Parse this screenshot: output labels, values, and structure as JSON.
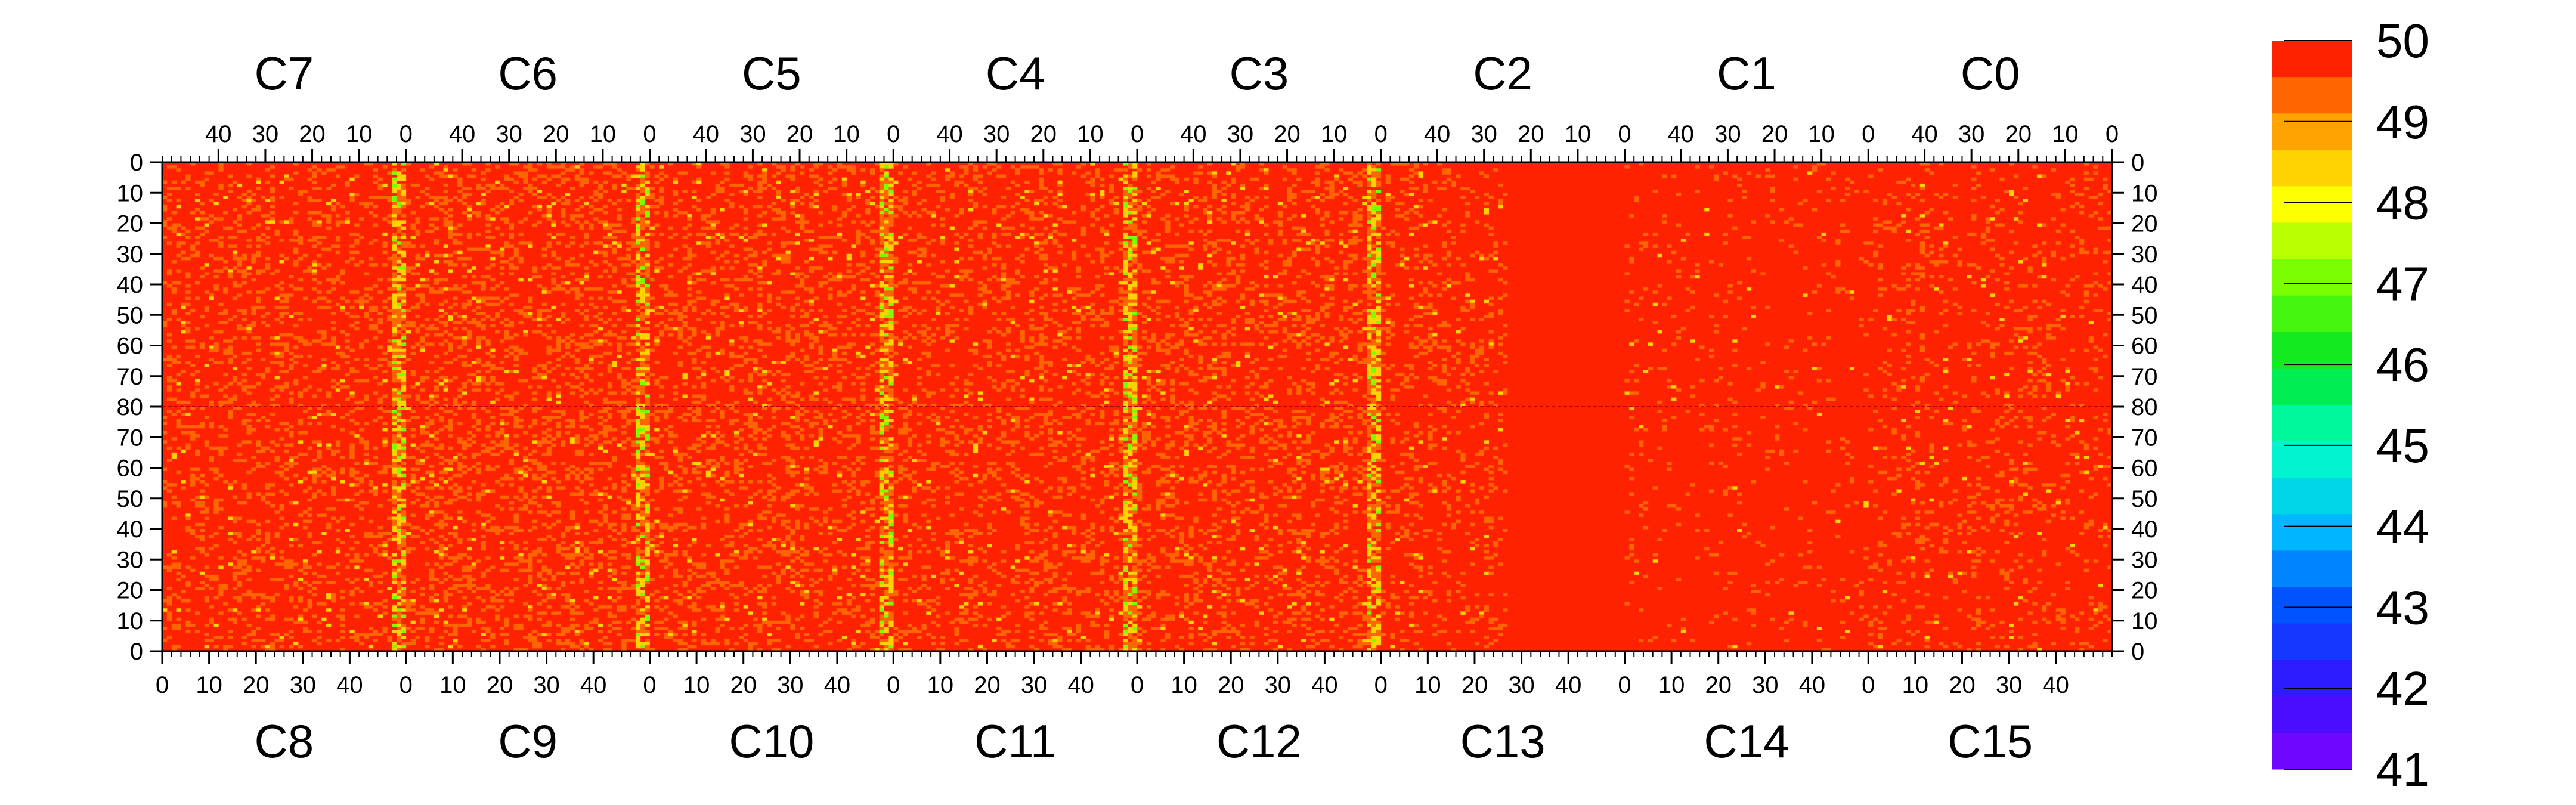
{
  "chart_data": {
    "type": "heatmap",
    "title": "",
    "xlabel": "",
    "ylabel": "",
    "top_row_labels": [
      "C7",
      "C6",
      "C5",
      "C4",
      "C3",
      "C2",
      "C1",
      "C0"
    ],
    "bottom_row_labels": [
      "C8",
      "C9",
      "C10",
      "C11",
      "C12",
      "C13",
      "C14",
      "C15"
    ],
    "column_range_per_chip": [
      0,
      52
    ],
    "row_range_per_half": [
      0,
      80
    ],
    "top_axis_ticks": [
      "40",
      "30",
      "20",
      "10",
      "0"
    ],
    "bottom_axis_ticks": [
      "0",
      "10",
      "20",
      "30",
      "40"
    ],
    "left_axis_ticks_top_half": [
      "0",
      "10",
      "20",
      "30",
      "40",
      "50",
      "60",
      "70",
      "80"
    ],
    "left_axis_ticks_bottom_half": [
      "70",
      "60",
      "50",
      "40",
      "30",
      "20",
      "10",
      "0"
    ],
    "zlim": [
      41,
      50
    ],
    "colorbar_ticks": [
      "50",
      "49",
      "48",
      "47",
      "46",
      "45",
      "44",
      "43",
      "42",
      "41"
    ],
    "colorbar_levels": 20,
    "dominant_value": 50,
    "colors": {
      "high": "#ff0000",
      "mid": "#ffff00",
      "low": "#7f00ff"
    }
  }
}
